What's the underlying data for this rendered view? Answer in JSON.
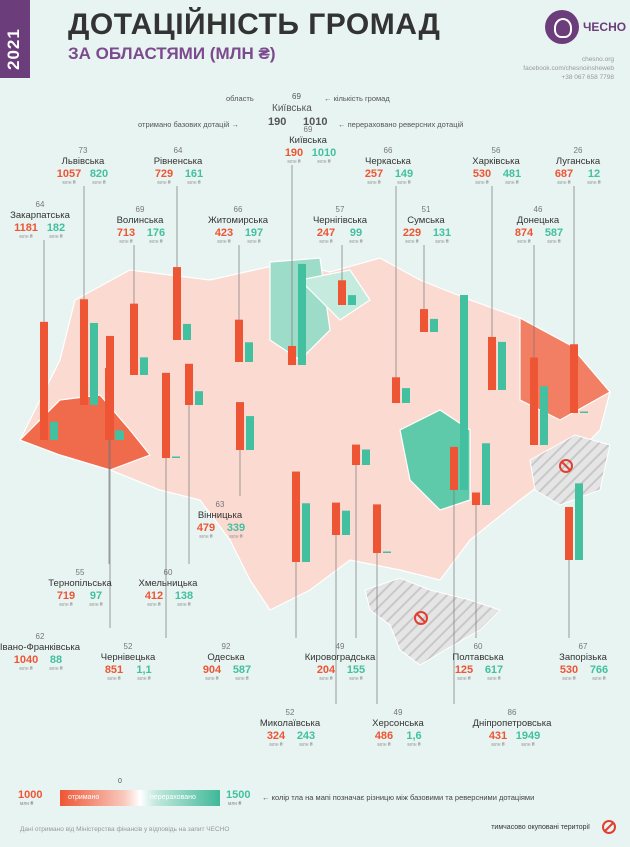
{
  "header": {
    "year": "2021",
    "title": "ДОТАЦІЙНІСТЬ ГРОМАД",
    "subtitle": "ЗА ОБЛАСТЯМИ (МЛН ₴)",
    "logo_text": "ЧЕСНО",
    "contacts": [
      "chesno.org",
      "facebook.com/chesnoinsheweb",
      "+38 067 658 7798"
    ]
  },
  "legend_top": {
    "region_label": "область",
    "communities_label": "← кількість громад",
    "received_label": "отримано базових дотацій →",
    "transferred_label": "← перераховано реверсних дотацій",
    "example_name": "Київська",
    "example_count": "69",
    "example_basic": "190",
    "example_reverse": "1010"
  },
  "unit": "млн ₴",
  "colors": {
    "basic": "#ee5534",
    "reverse": "#43c0a0",
    "background": "#e8f4f1"
  },
  "chart_data": {
    "type": "bar",
    "title": "ДОТАЦІЙНІСТЬ ГРОМАД",
    "subtitle": "ЗА ОБЛАСТЯМИ (МЛН ₴)",
    "series_names": [
      "отримано базових дотацій",
      "перераховано реверсних дотацій"
    ],
    "regions": [
      {
        "name": "Закарпатська",
        "communities": "64",
        "basic": 1181,
        "reverse": 182,
        "basic_text": "1181",
        "reverse_text": "182"
      },
      {
        "name": "Львівська",
        "communities": "73",
        "basic": 1057,
        "reverse": 820,
        "basic_text": "1057",
        "reverse_text": "820"
      },
      {
        "name": "Волинська",
        "communities": "69",
        "basic": 713,
        "reverse": 176,
        "basic_text": "713",
        "reverse_text": "176"
      },
      {
        "name": "Рівненська",
        "communities": "64",
        "basic": 729,
        "reverse": 161,
        "basic_text": "729",
        "reverse_text": "161"
      },
      {
        "name": "Житомирська",
        "communities": "66",
        "basic": 423,
        "reverse": 197,
        "basic_text": "423",
        "reverse_text": "197"
      },
      {
        "name": "Київська",
        "communities": "69",
        "basic": 190,
        "reverse": 1010,
        "basic_text": "190",
        "reverse_text": "1010"
      },
      {
        "name": "Чернігівська",
        "communities": "57",
        "basic": 247,
        "reverse": 99,
        "basic_text": "247",
        "reverse_text": "99"
      },
      {
        "name": "Черкаська",
        "communities": "66",
        "basic": 257,
        "reverse": 149,
        "basic_text": "257",
        "reverse_text": "149"
      },
      {
        "name": "Сумська",
        "communities": "51",
        "basic": 229,
        "reverse": 131,
        "basic_text": "229",
        "reverse_text": "131"
      },
      {
        "name": "Харківська",
        "communities": "56",
        "basic": 530,
        "reverse": 481,
        "basic_text": "530",
        "reverse_text": "481"
      },
      {
        "name": "Донецька",
        "communities": "46",
        "basic": 874,
        "reverse": 587,
        "basic_text": "874",
        "reverse_text": "587"
      },
      {
        "name": "Луганська",
        "communities": "26",
        "basic": 687,
        "reverse": 12,
        "basic_text": "687",
        "reverse_text": "12"
      },
      {
        "name": "Вінницька",
        "communities": "63",
        "basic": 479,
        "reverse": 339,
        "basic_text": "479",
        "reverse_text": "339"
      },
      {
        "name": "Тернопільська",
        "communities": "55",
        "basic": 719,
        "reverse": 97,
        "basic_text": "719",
        "reverse_text": "97"
      },
      {
        "name": "Хмельницька",
        "communities": "60",
        "basic": 412,
        "reverse": 138,
        "basic_text": "412",
        "reverse_text": "138"
      },
      {
        "name": "Івано-Франківська",
        "communities": "62",
        "basic": 1040,
        "reverse": 88,
        "basic_text": "1040",
        "reverse_text": "88"
      },
      {
        "name": "Чернівецька",
        "communities": "52",
        "basic": 851,
        "reverse": 1.1,
        "basic_text": "851",
        "reverse_text": "1,1"
      },
      {
        "name": "Одеська",
        "communities": "92",
        "basic": 904,
        "reverse": 587,
        "basic_text": "904",
        "reverse_text": "587"
      },
      {
        "name": "Миколаївська",
        "communities": "52",
        "basic": 324,
        "reverse": 243,
        "basic_text": "324",
        "reverse_text": "243"
      },
      {
        "name": "Кировоградська",
        "communities": "49",
        "basic": 204,
        "reverse": 155,
        "basic_text": "204",
        "reverse_text": "155"
      },
      {
        "name": "Херсонська",
        "communities": "49",
        "basic": 486,
        "reverse": 1.6,
        "basic_text": "486",
        "reverse_text": "1,6"
      },
      {
        "name": "Полтавська",
        "communities": "60",
        "basic": 125,
        "reverse": 617,
        "basic_text": "125",
        "reverse_text": "617"
      },
      {
        "name": "Дніпропетровська",
        "communities": "86",
        "basic": 431,
        "reverse": 1949,
        "basic_text": "431",
        "reverse_text": "1949"
      },
      {
        "name": "Запорізька",
        "communities": "67",
        "basic": 530,
        "reverse": 766,
        "basic_text": "530",
        "reverse_text": "766"
      }
    ]
  },
  "scale": {
    "left_value": "1000",
    "right_value": "1500",
    "zero": "0",
    "left_label": "отримано",
    "right_label": "перераховано",
    "note": "← колір тла на мапі позначає різницю між базовими та реверсними дотаціями"
  },
  "footer": {
    "note": "Дані отримано від Міністерства фінансів у відповідь на запит ЧЕСНО",
    "occupied": "тимчасово окуповані території"
  }
}
